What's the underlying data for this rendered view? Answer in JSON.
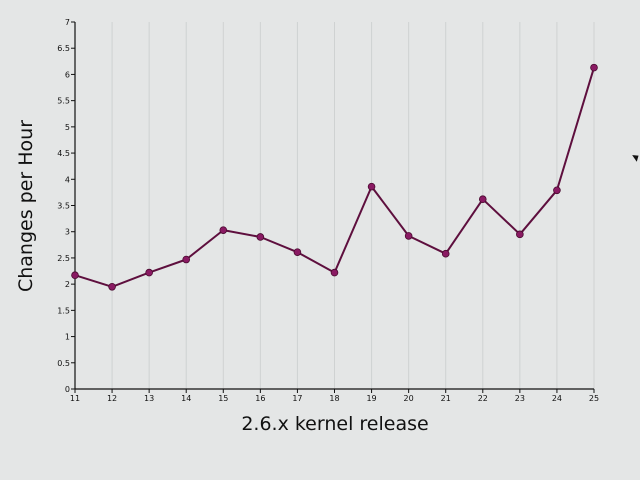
{
  "chart_data": {
    "type": "line",
    "title": "",
    "xlabel": "2.6.x kernel release",
    "ylabel": "Changes per Hour",
    "x": [
      11,
      12,
      13,
      14,
      15,
      16,
      17,
      18,
      19,
      20,
      21,
      22,
      23,
      24,
      25
    ],
    "x_tick_labels": [
      "11",
      "12",
      "13",
      "14",
      "15",
      "16",
      "17",
      "18",
      "19",
      "20",
      "21",
      "22",
      "23",
      "24",
      "25"
    ],
    "y_tick_labels": [
      "0",
      "0.5",
      "1",
      "1.5",
      "2",
      "2.5",
      "3",
      "3.5",
      "4",
      "4.5",
      "5",
      "5.5",
      "6",
      "6.5",
      "7"
    ],
    "series": [
      {
        "values": [
          2.17,
          1.95,
          2.22,
          2.47,
          3.03,
          2.9,
          2.61,
          2.22,
          3.86,
          2.92,
          2.58,
          3.62,
          2.95,
          3.79,
          6.13
        ]
      }
    ],
    "xlim": [
      11,
      25
    ],
    "ylim": [
      0,
      7
    ],
    "grid": "vertical",
    "colors": {
      "line": "#5e0f3e",
      "marker": "#8a1a63",
      "grid": "#cfd2d2",
      "axis": "#111111",
      "background": "#e4e6e6"
    }
  }
}
